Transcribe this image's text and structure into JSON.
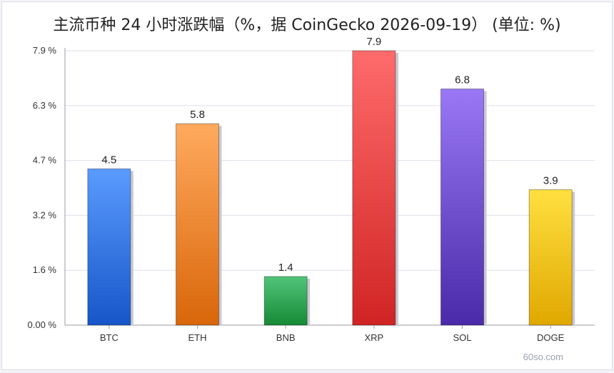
{
  "chart_data": {
    "type": "bar",
    "title": "主流币种 24 小时涨跌幅（%，据 CoinGecko 2026-09-19） (单位: %)",
    "categories": [
      "BTC",
      "ETH",
      "BNB",
      "XRP",
      "SOL",
      "DOGE"
    ],
    "values": [
      4.5,
      5.8,
      1.4,
      7.9,
      6.8,
      3.9
    ],
    "value_labels": [
      "4.5",
      "5.8",
      "1.4",
      "7.9",
      "6.8",
      "3.9"
    ],
    "y_ticks": [
      0,
      1.58,
      3.16,
      4.74,
      6.32,
      7.9
    ],
    "y_tick_labels": [
      "0.00 %",
      "1.6 %",
      "3.2 %",
      "4.7 %",
      "6.3 %",
      "7.9 %"
    ],
    "ylim": [
      0,
      7.9
    ],
    "xlabel": "",
    "ylabel": "",
    "grid": true,
    "bar_colors": [
      [
        "#5a9bff",
        "#1656c8"
      ],
      [
        "#ffaa5e",
        "#d9660a"
      ],
      [
        "#52c47a",
        "#168a35"
      ],
      [
        "#ff6b6b",
        "#d02424"
      ],
      [
        "#9a78f5",
        "#4a2aa8"
      ],
      [
        "#ffe040",
        "#e0a800"
      ]
    ]
  },
  "watermark": "60so.com"
}
